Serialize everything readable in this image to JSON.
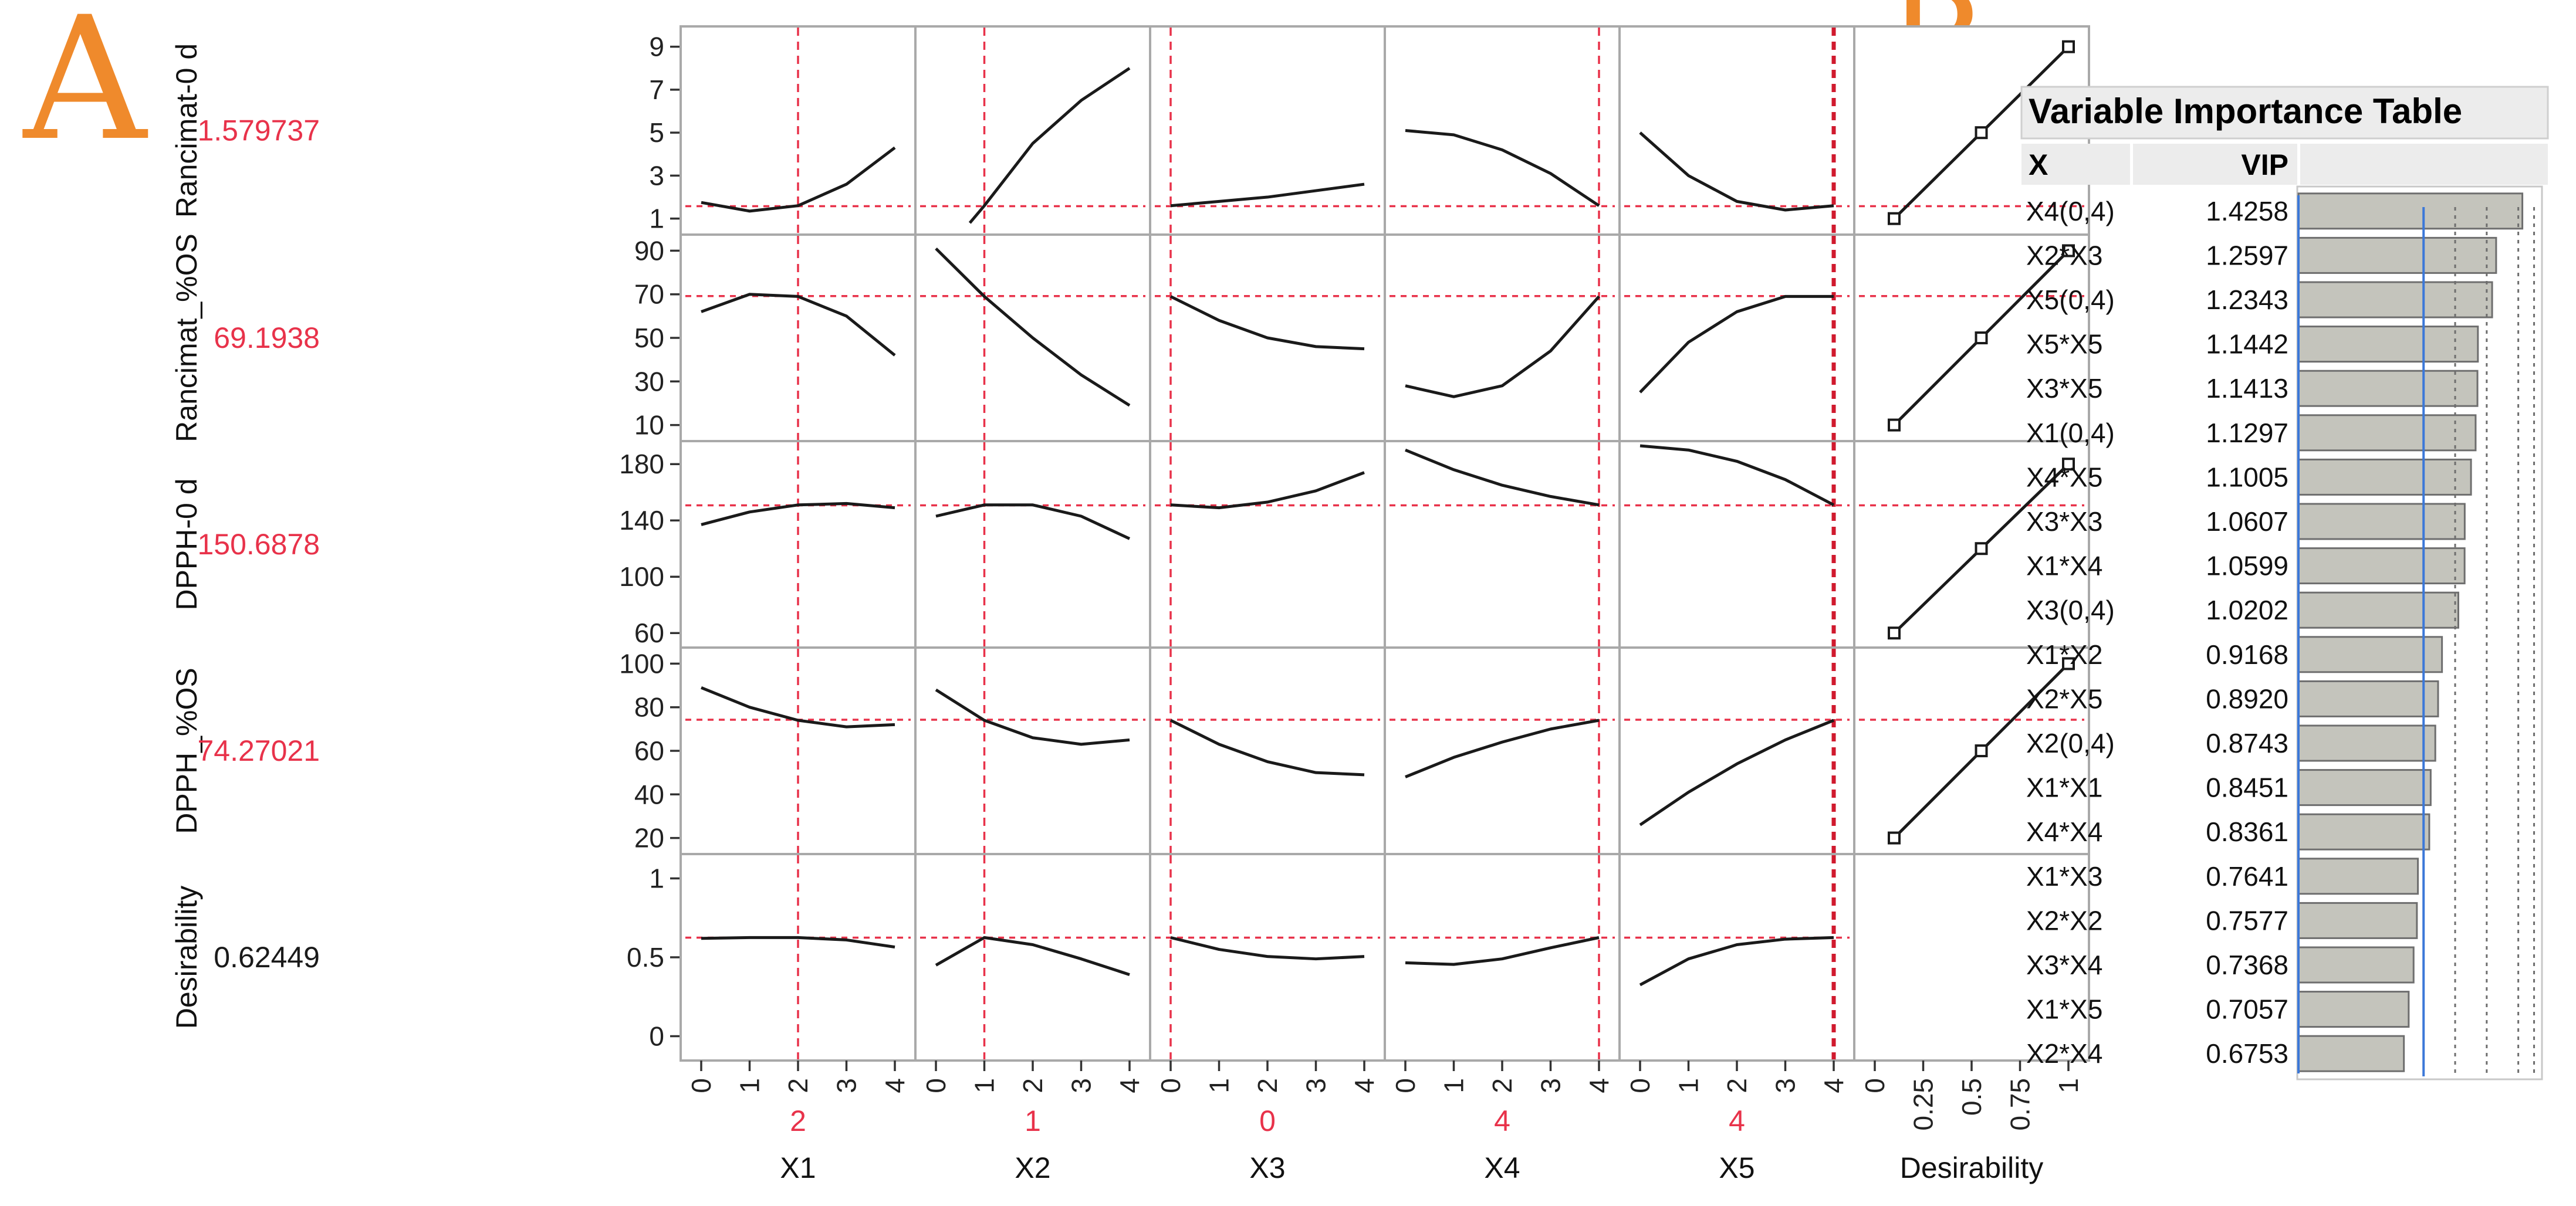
{
  "panel_labels": {
    "a": "A",
    "b": "B"
  },
  "colors": {
    "panel_letter": "#ef8a2c",
    "reference_line": "#e8324a",
    "current_value": "#e8324a",
    "desirability_value": "#1a1a1a",
    "vip_bar": "#c4c4bc",
    "vip_threshold": "#3c78d8"
  },
  "chart_data": [
    {
      "type": "line",
      "title": "",
      "factors": [
        {
          "name": "X1",
          "current": "2",
          "ticks": [
            "0",
            "1",
            "2",
            "3",
            "4"
          ],
          "range": [
            0,
            4
          ],
          "current_num": 2
        },
        {
          "name": "X2",
          "current": "1",
          "ticks": [
            "0",
            "1",
            "2",
            "3",
            "4"
          ],
          "range": [
            0,
            4
          ],
          "current_num": 1
        },
        {
          "name": "X3",
          "current": "0",
          "ticks": [
            "0",
            "1",
            "2",
            "3",
            "4"
          ],
          "range": [
            0,
            4
          ],
          "current_num": 0
        },
        {
          "name": "X4",
          "current": "4",
          "ticks": [
            "0",
            "1",
            "2",
            "3",
            "4"
          ],
          "range": [
            0,
            4
          ],
          "current_num": 4
        },
        {
          "name": "X5",
          "current": "4",
          "ticks": [
            "0",
            "1",
            "2",
            "3",
            "4"
          ],
          "range": [
            0,
            4
          ],
          "current_num": 4
        }
      ],
      "desirability_axis": {
        "name": "Desirability",
        "ticks": [
          "0",
          "0.25",
          "0.5",
          "0.75",
          "1"
        ],
        "range": [
          0,
          1
        ]
      },
      "responses": [
        {
          "name": "Rancimat-0 d",
          "current": "1.579737",
          "current_num": 1.579737,
          "ylim": [
            0.8,
            9.4
          ],
          "yticks": [
            1,
            3,
            5,
            7,
            9
          ],
          "curves": [
            [
              [
                0,
                1.75
              ],
              [
                1,
                1.35
              ],
              [
                2,
                1.6
              ],
              [
                3,
                2.6
              ],
              [
                4,
                4.3
              ]
            ],
            [
              [
                0.7,
                0.8
              ],
              [
                1,
                1.6
              ],
              [
                2,
                4.5
              ],
              [
                3,
                6.5
              ],
              [
                4,
                8.0
              ]
            ],
            [
              [
                0,
                1.6
              ],
              [
                1,
                1.8
              ],
              [
                2,
                2.0
              ],
              [
                3,
                2.3
              ],
              [
                4,
                2.6
              ]
            ],
            [
              [
                0,
                5.1
              ],
              [
                1,
                4.9
              ],
              [
                2,
                4.2
              ],
              [
                3,
                3.1
              ],
              [
                4,
                1.6
              ]
            ],
            [
              [
                0,
                5.0
              ],
              [
                1,
                3.0
              ],
              [
                2,
                1.8
              ],
              [
                3,
                1.4
              ],
              [
                4,
                1.6
              ]
            ]
          ],
          "desirability_points": [
            [
              1.0,
              0.1
            ],
            [
              5.0,
              0.55
            ],
            [
              9.0,
              1.0
            ]
          ]
        },
        {
          "name": "Rancimat_%OS",
          "current": "69.1938",
          "current_num": 69.1938,
          "ylim": [
            8,
            92
          ],
          "yticks": [
            10,
            30,
            50,
            70,
            90
          ],
          "curves": [
            [
              [
                0,
                62
              ],
              [
                1,
                70
              ],
              [
                2,
                69
              ],
              [
                3,
                60
              ],
              [
                4,
                42
              ]
            ],
            [
              [
                0,
                91
              ],
              [
                1,
                69
              ],
              [
                2,
                50
              ],
              [
                3,
                33
              ],
              [
                4,
                19
              ]
            ],
            [
              [
                0,
                69
              ],
              [
                1,
                58
              ],
              [
                2,
                50
              ],
              [
                3,
                46
              ],
              [
                4,
                45
              ]
            ],
            [
              [
                0,
                28
              ],
              [
                1,
                23
              ],
              [
                2,
                28
              ],
              [
                3,
                44
              ],
              [
                4,
                69
              ]
            ],
            [
              [
                0,
                25
              ],
              [
                1,
                48
              ],
              [
                2,
                62
              ],
              [
                3,
                69
              ],
              [
                4,
                69
              ]
            ]
          ],
          "desirability_points": [
            [
              10,
              0.1
            ],
            [
              50,
              0.55
            ],
            [
              90,
              1.0
            ]
          ]
        },
        {
          "name": "DPPH-0 d",
          "current": "150.6878",
          "current_num": 150.6878,
          "ylim": [
            58,
            188
          ],
          "yticks": [
            60,
            100,
            140,
            180
          ],
          "curves": [
            [
              [
                0,
                137
              ],
              [
                1,
                146
              ],
              [
                2,
                151
              ],
              [
                3,
                152
              ],
              [
                4,
                149
              ]
            ],
            [
              [
                0,
                143
              ],
              [
                1,
                151
              ],
              [
                2,
                151
              ],
              [
                3,
                143
              ],
              [
                4,
                127
              ]
            ],
            [
              [
                0,
                151
              ],
              [
                1,
                149
              ],
              [
                2,
                153
              ],
              [
                3,
                161
              ],
              [
                4,
                174
              ]
            ],
            [
              [
                0,
                190
              ],
              [
                1,
                176
              ],
              [
                2,
                165
              ],
              [
                3,
                157
              ],
              [
                4,
                151
              ]
            ],
            [
              [
                0,
                193
              ],
              [
                1,
                190
              ],
              [
                2,
                182
              ],
              [
                3,
                169
              ],
              [
                4,
                151
              ]
            ]
          ],
          "desirability_points": [
            [
              60,
              0.1
            ],
            [
              120,
              0.55
            ],
            [
              180,
              1.0
            ]
          ]
        },
        {
          "name": "DPPH_%OS",
          "current": "74.27021",
          "current_num": 74.27021,
          "ylim": [
            18,
            102
          ],
          "yticks": [
            20,
            40,
            60,
            80,
            100
          ],
          "curves": [
            [
              [
                0,
                89
              ],
              [
                1,
                80
              ],
              [
                2,
                74
              ],
              [
                3,
                71
              ],
              [
                4,
                72
              ]
            ],
            [
              [
                0,
                88
              ],
              [
                1,
                74
              ],
              [
                2,
                66
              ],
              [
                3,
                63
              ],
              [
                4,
                65
              ]
            ],
            [
              [
                0,
                74
              ],
              [
                1,
                63
              ],
              [
                2,
                55
              ],
              [
                3,
                50
              ],
              [
                4,
                49
              ]
            ],
            [
              [
                0,
                48
              ],
              [
                1,
                57
              ],
              [
                2,
                64
              ],
              [
                3,
                70
              ],
              [
                4,
                74
              ]
            ],
            [
              [
                0,
                26
              ],
              [
                1,
                41
              ],
              [
                2,
                54
              ],
              [
                3,
                65
              ],
              [
                4,
                74
              ]
            ]
          ],
          "desirability_points": [
            [
              20,
              0.1
            ],
            [
              60,
              0.55
            ],
            [
              100,
              1.0
            ]
          ]
        },
        {
          "name": "Desirability",
          "current": "0.62449",
          "current_num": 0.62449,
          "ylim": [
            -0.08,
            1.08
          ],
          "yticks": [
            "0",
            "0.5",
            "1"
          ],
          "ytick_values": [
            0,
            0.5,
            1
          ],
          "curves": [
            [
              [
                0,
                0.62
              ],
              [
                1,
                0.625
              ],
              [
                2,
                0.625
              ],
              [
                3,
                0.61
              ],
              [
                4,
                0.565
              ]
            ],
            [
              [
                0,
                0.45
              ],
              [
                1,
                0.625
              ],
              [
                2,
                0.58
              ],
              [
                3,
                0.49
              ],
              [
                4,
                0.39
              ]
            ],
            [
              [
                0,
                0.625
              ],
              [
                1,
                0.55
              ],
              [
                2,
                0.505
              ],
              [
                3,
                0.49
              ],
              [
                4,
                0.505
              ]
            ],
            [
              [
                0,
                0.465
              ],
              [
                1,
                0.455
              ],
              [
                2,
                0.49
              ],
              [
                3,
                0.56
              ],
              [
                4,
                0.625
              ]
            ],
            [
              [
                0,
                0.325
              ],
              [
                1,
                0.49
              ],
              [
                2,
                0.58
              ],
              [
                3,
                0.615
              ],
              [
                4,
                0.625
              ]
            ]
          ]
        }
      ]
    },
    {
      "type": "bar",
      "title": "Variable Importance Table",
      "column_x": "X",
      "column_vip": "VIP",
      "categories": [
        "X4(0,4)",
        "X2*X3",
        "X5(0,4)",
        "X5*X5",
        "X3*X5",
        "X1(0,4)",
        "X4*X5",
        "X3*X3",
        "X1*X4",
        "X3(0,4)",
        "X1*X2",
        "X2*X5",
        "X2(0,4)",
        "X1*X1",
        "X4*X4",
        "X1*X3",
        "X2*X2",
        "X3*X4",
        "X1*X5",
        "X2*X4"
      ],
      "labels": [
        "1.4258",
        "1.2597",
        "1.2343",
        "1.1442",
        "1.1413",
        "1.1297",
        "1.1005",
        "1.0607",
        "1.0599",
        "1.0202",
        "0.9168",
        "0.8920",
        "0.8743",
        "0.8451",
        "0.8361",
        "0.7641",
        "0.7577",
        "0.7368",
        "0.7057",
        "0.6753"
      ],
      "values": [
        1.4258,
        1.2597,
        1.2343,
        1.1442,
        1.1413,
        1.1297,
        1.1005,
        1.0607,
        1.0599,
        1.0202,
        0.9168,
        0.892,
        0.8743,
        0.8451,
        0.8361,
        0.7641,
        0.7577,
        0.7368,
        0.7057,
        0.6753
      ],
      "xlim": [
        0,
        1.55
      ],
      "reference_lines": [
        0.8,
        1.0,
        1.2,
        1.4,
        1.5
      ]
    }
  ]
}
